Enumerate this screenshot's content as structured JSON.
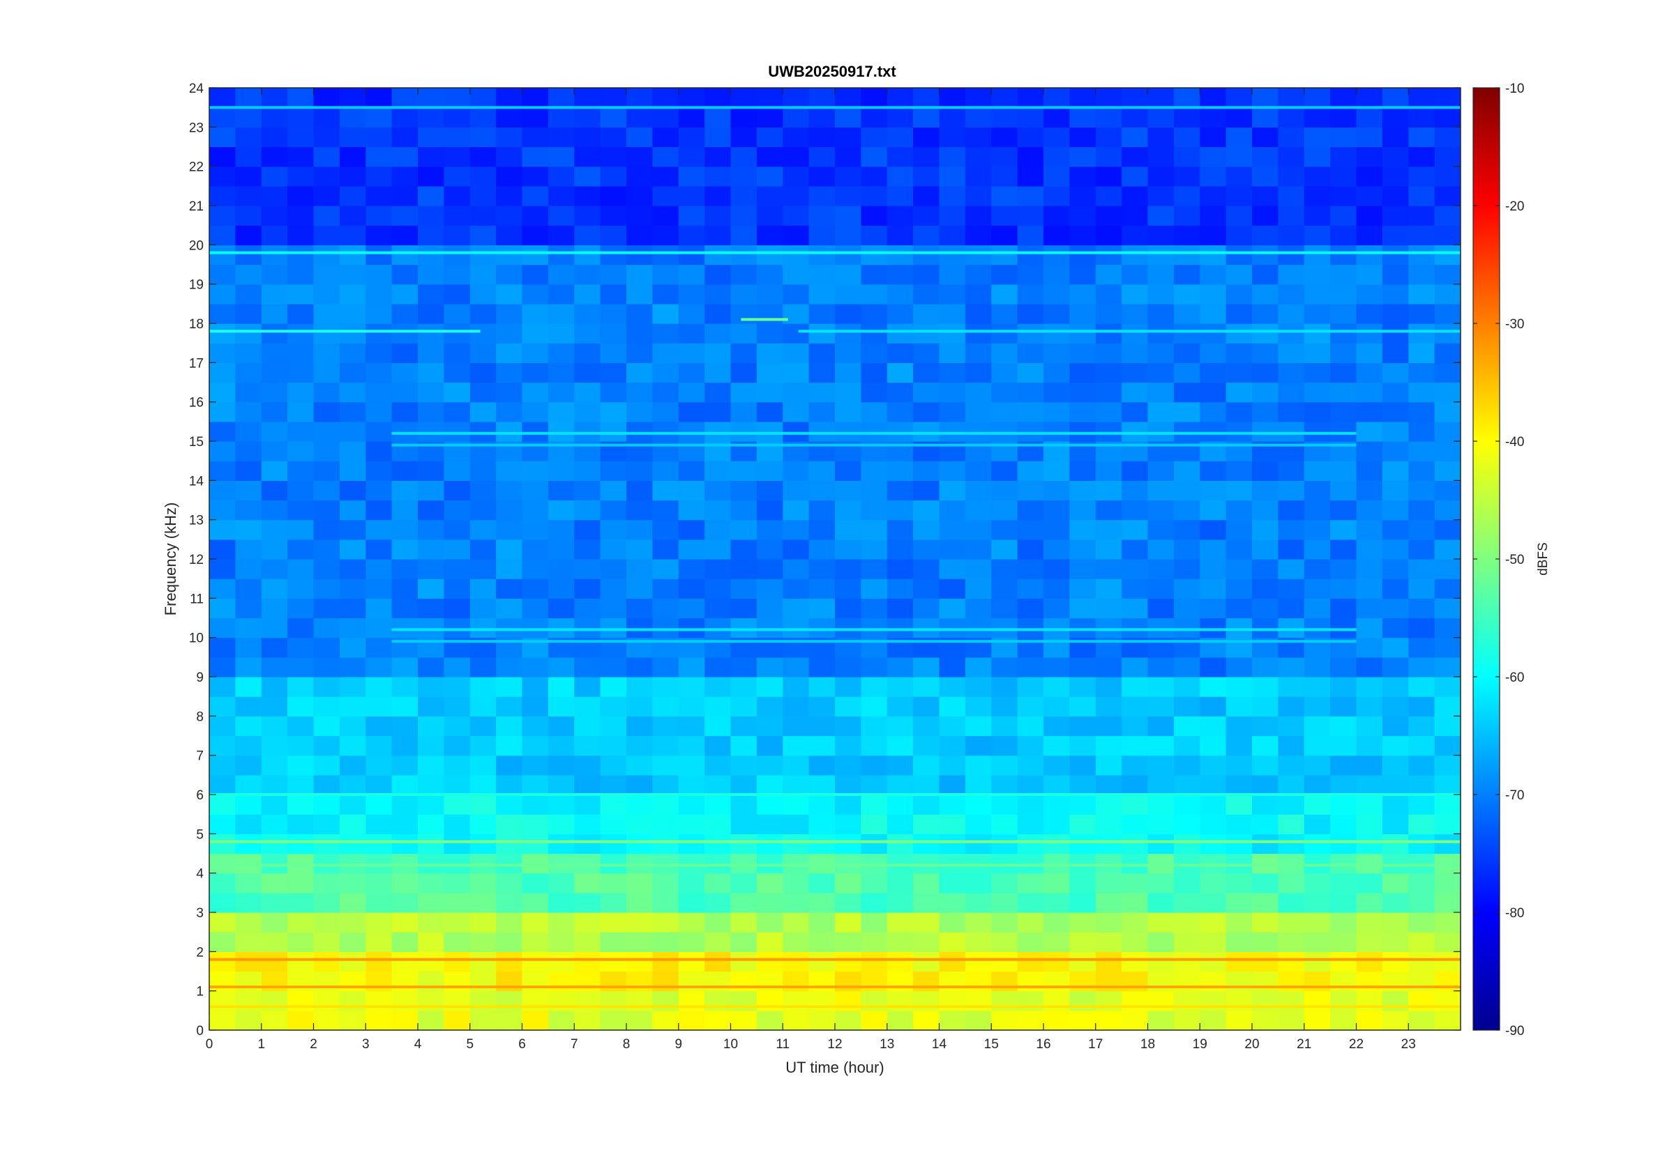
{
  "chart_data": {
    "type": "heatmap",
    "title": "UWB20250917.txt",
    "xlabel": "UT time (hour)",
    "ylabel": "Frequency (kHz)",
    "xlim": [
      0,
      24
    ],
    "ylim": [
      0,
      24
    ],
    "xticks": [
      "0",
      "1",
      "2",
      "3",
      "4",
      "5",
      "6",
      "7",
      "8",
      "9",
      "10",
      "11",
      "12",
      "13",
      "14",
      "15",
      "16",
      "17",
      "18",
      "19",
      "20",
      "21",
      "22",
      "23"
    ],
    "yticks": [
      "0",
      "1",
      "2",
      "3",
      "4",
      "5",
      "6",
      "7",
      "8",
      "9",
      "10",
      "11",
      "12",
      "13",
      "14",
      "15",
      "16",
      "17",
      "18",
      "19",
      "20",
      "21",
      "22",
      "23",
      "24"
    ],
    "colorbar": {
      "label": "dBFS",
      "range": [
        -90,
        -10
      ],
      "ticks": [
        "-10",
        "-20",
        "-30",
        "-40",
        "-50",
        "-60",
        "-70",
        "-80",
        "-90"
      ],
      "colormap": "jet"
    },
    "background_levels_dbfs": [
      {
        "freq_khz": [
          0,
          1
        ],
        "level": -42
      },
      {
        "freq_khz": [
          1,
          2
        ],
        "level": -40
      },
      {
        "freq_khz": [
          2,
          3
        ],
        "level": -46
      },
      {
        "freq_khz": [
          3,
          4.5
        ],
        "level": -54
      },
      {
        "freq_khz": [
          4.5,
          6
        ],
        "level": -60
      },
      {
        "freq_khz": [
          6,
          9
        ],
        "level": -64
      },
      {
        "freq_khz": [
          9,
          20
        ],
        "level": -70
      },
      {
        "freq_khz": [
          20,
          24
        ],
        "level": -76
      }
    ],
    "horizontal_lines": [
      {
        "freq_khz": 19.8,
        "level": -60,
        "hours": [
          0,
          24
        ]
      },
      {
        "freq_khz": 17.8,
        "level": -58,
        "hours": [
          0,
          5.2
        ]
      },
      {
        "freq_khz": 17.8,
        "level": -62,
        "hours": [
          11.3,
          24
        ]
      },
      {
        "freq_khz": 18.1,
        "level": -52,
        "hours": [
          10.2,
          11.1
        ]
      },
      {
        "freq_khz": 23.5,
        "level": -64,
        "hours": [
          0,
          24
        ]
      },
      {
        "freq_khz": 15.2,
        "level": -62,
        "hours": [
          3.5,
          22
        ]
      },
      {
        "freq_khz": 14.9,
        "level": -64,
        "hours": [
          3.5,
          22
        ]
      },
      {
        "freq_khz": 10.2,
        "level": -62,
        "hours": [
          3.5,
          22
        ]
      },
      {
        "freq_khz": 9.9,
        "level": -64,
        "hours": [
          3.5,
          22
        ]
      },
      {
        "freq_khz": 6.0,
        "level": -58,
        "hours": [
          0,
          24
        ]
      },
      {
        "freq_khz": 4.8,
        "level": -50,
        "hours": [
          0,
          24
        ]
      },
      {
        "freq_khz": 4.2,
        "level": -52,
        "hours": [
          0,
          24
        ]
      },
      {
        "freq_khz": 1.8,
        "level": -32,
        "hours": [
          0,
          24
        ]
      },
      {
        "freq_khz": 1.1,
        "level": -33,
        "hours": [
          0,
          24
        ]
      },
      {
        "freq_khz": 0.6,
        "level": -38,
        "hours": [
          0,
          24
        ]
      }
    ]
  }
}
